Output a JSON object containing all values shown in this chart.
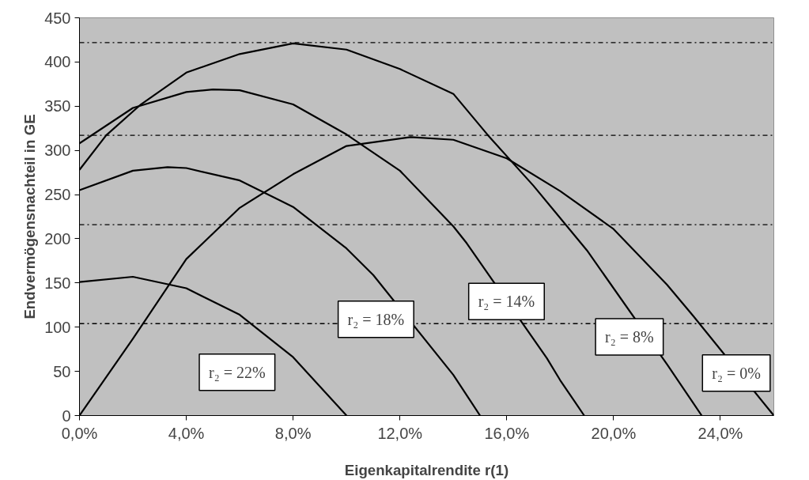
{
  "chart_data": {
    "type": "line",
    "xlabel": "Eigenkapitalrendite r(1)",
    "ylabel": "Endvermögensnachteil in GE",
    "xlim": [
      0,
      26
    ],
    "ylim": [
      0,
      450
    ],
    "xticks": [
      {
        "value": 0,
        "label": "0,0%"
      },
      {
        "value": 4,
        "label": "4,0%"
      },
      {
        "value": 8,
        "label": "8,0%"
      },
      {
        "value": 12,
        "label": "12,0%"
      },
      {
        "value": 16,
        "label": "16,0%"
      },
      {
        "value": 20,
        "label": "20,0%"
      },
      {
        "value": 24,
        "label": "24,0%"
      }
    ],
    "yticks": [
      0,
      50,
      100,
      150,
      200,
      250,
      300,
      350,
      400,
      450
    ],
    "grid": false,
    "marker": "none",
    "line_style": "solid",
    "series": [
      {
        "color": "#000000",
        "x": [
          0,
          2,
          4,
          6,
          8,
          10
        ],
        "values": [
          151,
          157,
          144,
          114,
          66,
          0
        ]
      },
      {
        "color": "#000000",
        "x": [
          0,
          2,
          3.3,
          4,
          6,
          8,
          10,
          11,
          14,
          15
        ],
        "values": [
          255,
          277,
          281,
          280,
          266,
          236,
          189,
          159,
          46,
          0
        ]
      },
      {
        "color": "#000000",
        "x": [
          0,
          2,
          4,
          5,
          6,
          8,
          10,
          12,
          14,
          14.5,
          17.5,
          18,
          18.9
        ],
        "values": [
          308,
          348,
          366,
          369,
          368,
          352,
          318,
          277,
          214,
          195,
          65,
          40,
          0
        ]
      },
      {
        "color": "#000000",
        "x": [
          0,
          1,
          2.3,
          4,
          6,
          8,
          10,
          12,
          14,
          15.3,
          17,
          19,
          22,
          23.3
        ],
        "values": [
          278,
          317,
          352,
          388,
          409,
          421,
          414,
          392,
          364,
          317,
          260,
          187,
          58,
          0
        ]
      },
      {
        "color": "#000000",
        "x": [
          0,
          2,
          4,
          6,
          8,
          10,
          12.4,
          14,
          16,
          18,
          20,
          22,
          23,
          26
        ],
        "values": [
          0,
          87,
          177,
          235,
          273,
          305,
          315,
          312,
          291,
          254,
          211,
          148,
          112,
          0
        ]
      }
    ],
    "ref_lines": [
      {
        "axis": "y",
        "value": 422,
        "color": "#000000",
        "line_style": "dashdot"
      },
      {
        "axis": "y",
        "value": 317,
        "color": "#000000",
        "line_style": "dashdot"
      },
      {
        "axis": "y",
        "value": 216,
        "color": "#000000",
        "line_style": "dashdot"
      },
      {
        "axis": "y",
        "value": 104,
        "color": "#000000",
        "line_style": "dashdot"
      }
    ],
    "annotations": [
      "r₂ = 22%",
      "r₂ = 18%",
      "r₂ = 14%",
      "r₂ = 8%",
      "r₂ = 0%"
    ]
  }
}
